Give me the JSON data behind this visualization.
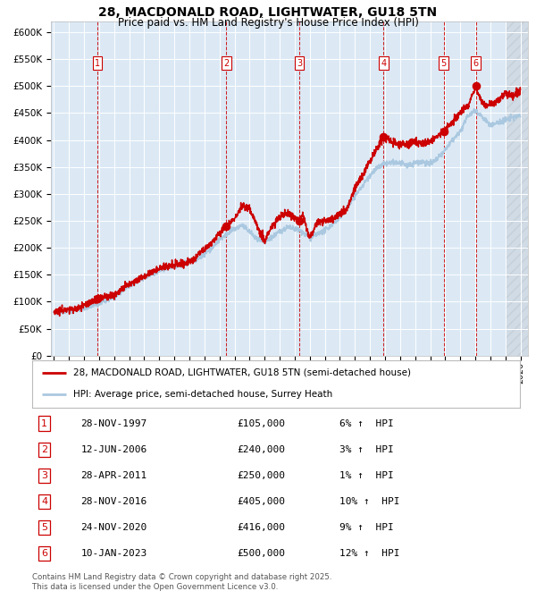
{
  "title": "28, MACDONALD ROAD, LIGHTWATER, GU18 5TN",
  "subtitle": "Price paid vs. HM Land Registry's House Price Index (HPI)",
  "legend_line1": "28, MACDONALD ROAD, LIGHTWATER, GU18 5TN (semi-detached house)",
  "legend_line2": "HPI: Average price, semi-detached house, Surrey Heath",
  "footer_line1": "Contains HM Land Registry data © Crown copyright and database right 2025.",
  "footer_line2": "This data is licensed under the Open Government Licence v3.0.",
  "sale_color": "#cc0000",
  "hpi_color": "#aac8e0",
  "background_color": "#dce9f5",
  "sale_line_color": "#cc0000",
  "hpi_line_color": "#aac8e0",
  "sales": [
    {
      "num": 1,
      "date": "28-NOV-1997",
      "price": 105000,
      "pct": "6%",
      "dir": "↑"
    },
    {
      "num": 2,
      "date": "12-JUN-2006",
      "price": 240000,
      "pct": "3%",
      "dir": "↑"
    },
    {
      "num": 3,
      "date": "28-APR-2011",
      "price": 250000,
      "pct": "1%",
      "dir": "↑"
    },
    {
      "num": 4,
      "date": "28-NOV-2016",
      "price": 405000,
      "pct": "10%",
      "dir": "↑"
    },
    {
      "num": 5,
      "date": "24-NOV-2020",
      "price": 416000,
      "pct": "9%",
      "dir": "↑"
    },
    {
      "num": 6,
      "date": "10-JAN-2023",
      "price": 500000,
      "pct": "12%",
      "dir": "↑"
    }
  ],
  "sale_x_years": [
    1997.9,
    2006.45,
    2011.32,
    2016.91,
    2020.9,
    2023.03
  ],
  "sale_y_values": [
    105000,
    240000,
    250000,
    405000,
    416000,
    500000
  ],
  "hpi_anchors_x": [
    1995.0,
    1997.0,
    1997.9,
    1999.0,
    2000.0,
    2001.0,
    2002.0,
    2002.5,
    2003.5,
    2004.5,
    2005.5,
    2006.0,
    2006.45,
    2007.0,
    2007.5,
    2008.0,
    2008.5,
    2009.0,
    2009.5,
    2010.0,
    2010.5,
    2011.0,
    2011.32,
    2012.0,
    2013.0,
    2014.0,
    2015.0,
    2015.5,
    2016.0,
    2016.5,
    2016.91,
    2017.5,
    2018.0,
    2018.5,
    2019.0,
    2019.5,
    2020.0,
    2020.5,
    2020.9,
    2021.5,
    2022.0,
    2022.5,
    2023.0,
    2023.5,
    2024.0,
    2024.5,
    2025.0,
    2025.5,
    2026.0
  ],
  "hpi_anchors_y": [
    80000,
    88000,
    95000,
    110000,
    128000,
    145000,
    158000,
    163000,
    170000,
    178000,
    200000,
    215000,
    225000,
    235000,
    242000,
    230000,
    215000,
    210000,
    220000,
    230000,
    238000,
    235000,
    233000,
    218000,
    232000,
    255000,
    295000,
    315000,
    335000,
    348000,
    355000,
    358000,
    357000,
    352000,
    358000,
    360000,
    355000,
    365000,
    378000,
    400000,
    415000,
    445000,
    455000,
    442000,
    427000,
    432000,
    437000,
    442000,
    445000
  ],
  "sale_anchors_x": [
    1995.0,
    1996.5,
    1997.0,
    1997.9,
    1999.0,
    2000.0,
    2001.0,
    2002.0,
    2003.0,
    2004.0,
    2005.0,
    2006.0,
    2006.45,
    2007.0,
    2007.5,
    2008.0,
    2009.0,
    2009.5,
    2010.0,
    2010.5,
    2011.0,
    2011.32,
    2011.5,
    2012.0,
    2012.5,
    2013.0,
    2013.5,
    2014.0,
    2014.5,
    2015.0,
    2015.5,
    2016.0,
    2016.5,
    2016.91,
    2017.0,
    2017.5,
    2018.0,
    2018.5,
    2019.0,
    2019.5,
    2020.0,
    2020.5,
    2020.9,
    2021.5,
    2022.0,
    2022.5,
    2023.0,
    2023.03,
    2023.4,
    2023.7,
    2024.0,
    2024.5,
    2025.0,
    2025.5,
    2026.0
  ],
  "sale_anchors_y": [
    83000,
    87000,
    93000,
    105000,
    113000,
    132000,
    148000,
    162000,
    168000,
    173000,
    197000,
    225000,
    240000,
    255000,
    278000,
    272000,
    212000,
    240000,
    258000,
    265000,
    258000,
    250000,
    263000,
    218000,
    248000,
    252000,
    252000,
    263000,
    272000,
    312000,
    332000,
    362000,
    385000,
    405000,
    402000,
    397000,
    392000,
    392000,
    397000,
    392000,
    397000,
    408000,
    416000,
    432000,
    453000,
    463000,
    498000,
    500000,
    472000,
    463000,
    468000,
    472000,
    487000,
    480000,
    492000
  ],
  "ylim": [
    0,
    620000
  ],
  "yticks": [
    0,
    50000,
    100000,
    150000,
    200000,
    250000,
    300000,
    350000,
    400000,
    450000,
    500000,
    550000,
    600000
  ],
  "xlim_start": 1994.8,
  "xlim_end": 2026.5,
  "hatch_start": 2025.0,
  "noise_seed": 42
}
